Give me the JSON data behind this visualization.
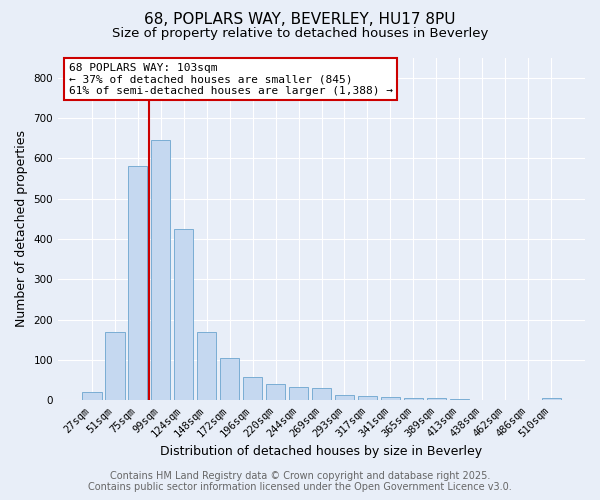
{
  "title_line1": "68, POPLARS WAY, BEVERLEY, HU17 8PU",
  "title_line2": "Size of property relative to detached houses in Beverley",
  "xlabel": "Distribution of detached houses by size in Beverley",
  "ylabel": "Number of detached properties",
  "bar_labels": [
    "27sqm",
    "51sqm",
    "75sqm",
    "99sqm",
    "124sqm",
    "148sqm",
    "172sqm",
    "196sqm",
    "220sqm",
    "244sqm",
    "269sqm",
    "293sqm",
    "317sqm",
    "341sqm",
    "365sqm",
    "389sqm",
    "413sqm",
    "438sqm",
    "462sqm",
    "486sqm",
    "510sqm"
  ],
  "bar_values": [
    20,
    170,
    580,
    645,
    425,
    170,
    105,
    57,
    42,
    33,
    30,
    14,
    10,
    8,
    7,
    5,
    4,
    2,
    1,
    1,
    6
  ],
  "bar_color": "#c5d8f0",
  "bar_edgecolor": "#7aadd4",
  "background_color": "#e8eef8",
  "grid_color": "#ffffff",
  "annotation_line1": "68 POPLARS WAY: 103sqm",
  "annotation_line2": "← 37% of detached houses are smaller (845)",
  "annotation_line3": "61% of semi-detached houses are larger (1,388) →",
  "annotation_box_color": "#ffffff",
  "annotation_box_edgecolor": "#cc0000",
  "red_line_x": 2.5,
  "ylim": [
    0,
    850
  ],
  "yticks": [
    0,
    100,
    200,
    300,
    400,
    500,
    600,
    700,
    800
  ],
  "footer_line1": "Contains HM Land Registry data © Crown copyright and database right 2025.",
  "footer_line2": "Contains public sector information licensed under the Open Government Licence v3.0.",
  "title_fontsize": 11,
  "subtitle_fontsize": 9.5,
  "axis_label_fontsize": 9,
  "tick_label_fontsize": 7.5,
  "footer_fontsize": 7,
  "annotation_fontsize": 8
}
